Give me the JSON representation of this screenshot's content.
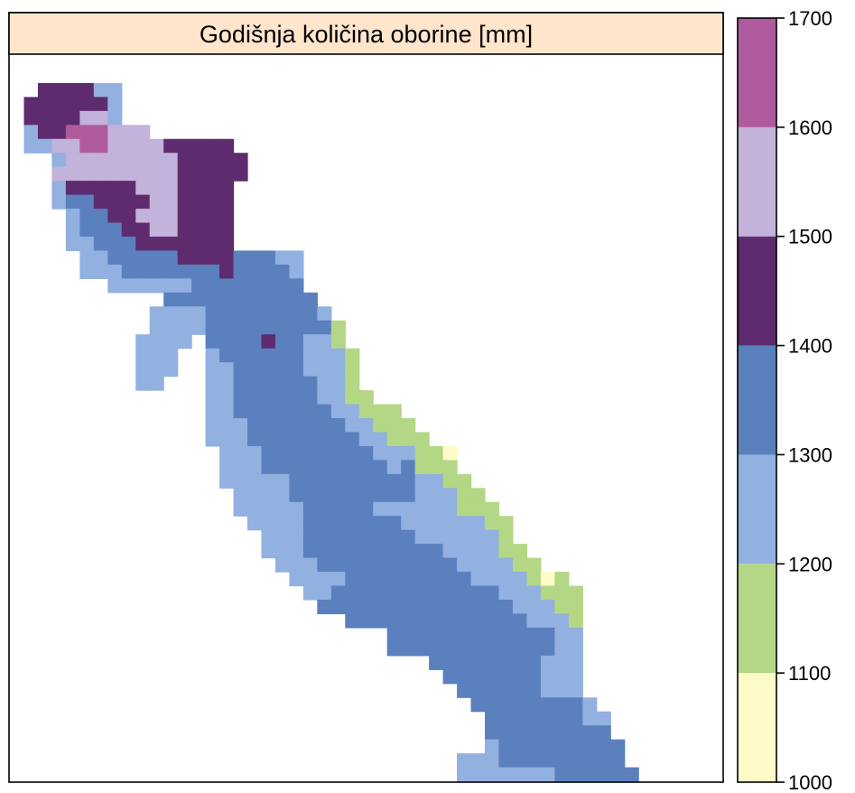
{
  "chart_data": {
    "type": "heatmap",
    "title": "Godišnja količina oborine [mm]",
    "xlabel": "",
    "ylabel": "",
    "legend": "right",
    "grid": false,
    "classes": [
      {
        "range": [
          1000,
          1100
        ],
        "color": "#FFFBC8"
      },
      {
        "range": [
          1100,
          1200
        ],
        "color": "#B3D785"
      },
      {
        "range": [
          1200,
          1300
        ],
        "color": "#92B0E0"
      },
      {
        "range": [
          1300,
          1400
        ],
        "color": "#5A80BE"
      },
      {
        "range": [
          1400,
          1500
        ],
        "color": "#5E2B6F"
      },
      {
        "range": [
          1500,
          1600
        ],
        "color": "#C3B2DA"
      },
      {
        "range": [
          1600,
          1700
        ],
        "color": "#B05A9E"
      }
    ],
    "colorbar_ticks": [
      "1000",
      "1100",
      "1200",
      "1300",
      "1400",
      "1500",
      "1600",
      "1700"
    ],
    "grid_size": [
      51,
      52
    ],
    "legend_key": {
      "Y": 1050,
      "G": 1150,
      "L": 1250,
      "B": 1350,
      "D": 1450,
      "V": 1550,
      "P": 1650,
      ".": null
    },
    "rows": [
      "...................................................",
      "...................................................",
      "..DDDDLL...........................................",
      ".DDDDDDL...........................................",
      ".DDDDVVL...........................................",
      ".LDDPPPVVV.........................................",
      ".LLVVPPVVVVDDDDD...................................",
      "...LVVVVVVVVDDDDD..................................",
      "...VVVVVVVVVDDDDD..................................",
      "...LDDDDDVVVDDDD...................................",
      "...LBBDDDDVVDDDD...................................",
      "....LBBDDVVVDDDD...................................",
      "....LBBBDDVVDDDD...................................",
      "....LLBBBDDDDDDD...................................",
      ".....LLBBBBBDDDDBBBLL..............................",
      ".....LLLBBBBBBBDBBBBL..............................",
      ".......LLLLLLBBBBBBBB..............................",
      "...........BBBBBBBBBBB.............................",
      "..........LLLLBBBBBBBBL............................",
      "..........LLLLBBBBBBBBBG...........................",
      ".........LLLL.BBBBDBBLLG...........................",
      ".........LLL..LBBBBBBLLLG..........................",
      ".........LLL..LLBBBBBLLLG..........................",
      ".........LL...LLBBBBBBLLG..........................",
      "..............LLBBBBBBLLGG.........................",
      "..............LLBBBBBBBLLGGG.......................",
      "..............LLLBBBBBBBLLGGG......................",
      "..............LLLBBBBBBBBLLGGG.....................",
      "...............LLLBBBBBBBBLLLGGY...................",
      "...............LLLBBBBBBBBBLBGGG...................",
      "...............LLLLLBBBBBBBBBLLGG..................",
      "................LLLLBBBBBBBBBLLLGG.................",
      "................LLLLLBBBBBLLLLLLGGG................",
      ".................LLLLBBBBBBBLLLLLLGG...............",
      "..................LLLBBBBBBBBLLLLLLG...............",
      "..................LLLBBBBBBBBBBLLLLGG..............",
      "...................LLLBBBBBBBBBBLLLLGG.............",
      "....................LLLLBBBBBBBBBLLLLGYG...........",
      ".....................LLBBBBBBBBBBBBLLLGGG..........",
      "......................BBBBBBBBBBBBBBLLLGG..........",
      "........................BBBBBBBBBBBBBLLLG..........",
      "...........................BBBBBBBBBBBBLL..........",
      "...........................BBBBBBBBBBBBLL..........",
      "..............................BBBBBBBBLLL..........",
      "...............................BBBBBBBLLL..........",
      "................................BBBBBBLLL..........",
      ".................................BBBBBBBBL.........",
      "..................................BBBBBBBLL........",
      "..................................BBBBBBBBB........",
      "..................................LBBBBBBBBB.......",
      "................................LLLBBBBBBBBB.......",
      "................................LLLLLLLBBBBBB......"
    ]
  }
}
